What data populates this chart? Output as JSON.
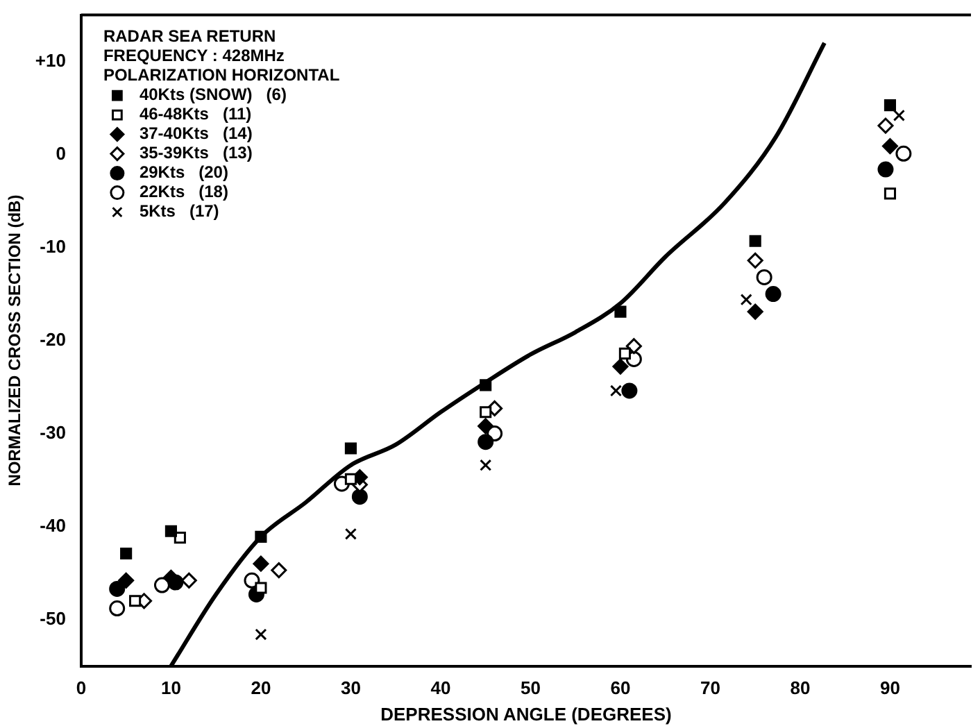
{
  "chart_data": {
    "type": "scatter",
    "title": "RADAR SEA RETURN",
    "annotations": [
      "FREQUENCY : 428MHz",
      "POLARIZATION HORIZONTAL"
    ],
    "xlabel": "DEPRESSION ANGLE (DEGREES)",
    "ylabel": "NORMALIZED CROSS SECTION (dB)",
    "xlim": [
      0,
      99
    ],
    "ylim": [
      -55,
      15
    ],
    "xticks": [
      0,
      10,
      20,
      30,
      40,
      50,
      60,
      70,
      80,
      90
    ],
    "yticks": [
      {
        "value": 10,
        "label": "+10"
      },
      0,
      -10,
      -20,
      -30,
      -40,
      -50
    ],
    "grid": false,
    "legend": "top left",
    "series": [
      {
        "name": "40Kts (SNOW)   (6)",
        "color": "#000000",
        "marker": "square",
        "x": [
          5,
          10,
          20,
          30,
          45,
          60,
          75,
          90
        ],
        "values": [
          -42.9,
          -40.5,
          -41.1,
          -31.6,
          -24.8,
          -16.9,
          -9.3,
          5.3
        ]
      },
      {
        "name": "46-48Kts   (11)",
        "color": "#000000",
        "marker": "square",
        "x": [
          6,
          11,
          20,
          30,
          45,
          60.5,
          90
        ],
        "values": [
          -48,
          -41.2,
          -46.6,
          -34.9,
          -27.7,
          -21.4,
          -4.2
        ]
      },
      {
        "name": "37-40Kts   (14)",
        "color": "#000000",
        "marker": "diamond",
        "x": [
          5,
          10,
          20,
          31,
          45,
          60,
          75,
          90
        ],
        "values": [
          -45.8,
          -45.5,
          -44,
          -34.7,
          -29.2,
          -22.8,
          -16.9,
          0.9
        ]
      },
      {
        "name": "35-39Kts   (13)",
        "color": "#000000",
        "marker": "diamond",
        "x": [
          7,
          12,
          22,
          31,
          46,
          61.5,
          75,
          89.5
        ],
        "values": [
          -48,
          -45.8,
          -44.7,
          -35.5,
          -27.3,
          -20.6,
          -11.4,
          3.1
        ]
      },
      {
        "name": "29Kts   (20)",
        "color": "#000000",
        "marker": "circle",
        "x": [
          4,
          10.5,
          19.5,
          31,
          45,
          61,
          77,
          89.5
        ],
        "values": [
          -46.7,
          -46,
          -47.3,
          -36.8,
          -30.9,
          -25.4,
          -15,
          -1.6
        ]
      },
      {
        "name": "22Kts   (18)",
        "color": "#000000",
        "marker": "circle",
        "x": [
          4,
          9,
          19,
          29,
          46,
          61.5,
          76,
          91.5
        ],
        "values": [
          -48.8,
          -46.3,
          -45.8,
          -35.4,
          -30,
          -22,
          -13.2,
          0.1
        ]
      },
      {
        "name": "5Kts   (17)",
        "color": "#000000",
        "marker": "cross",
        "x": [
          20,
          30,
          45,
          59.5,
          74,
          91
        ],
        "values": [
          -51.6,
          -40.8,
          -33.4,
          -25.4,
          -15.6,
          4.2
        ]
      },
      {
        "type": "line",
        "color": "#000000",
        "marker": "none",
        "x": [
          10,
          15,
          20,
          25,
          30,
          35,
          40,
          45,
          50,
          55,
          60,
          65,
          71.6,
          77.3,
          82.7
        ],
        "values": [
          -55,
          -47.3,
          -41.1,
          -37.4,
          -33.4,
          -31.2,
          -27.7,
          -24.5,
          -21.5,
          -19.1,
          -16,
          -11,
          -5.2,
          1.9,
          12
        ]
      }
    ]
  }
}
